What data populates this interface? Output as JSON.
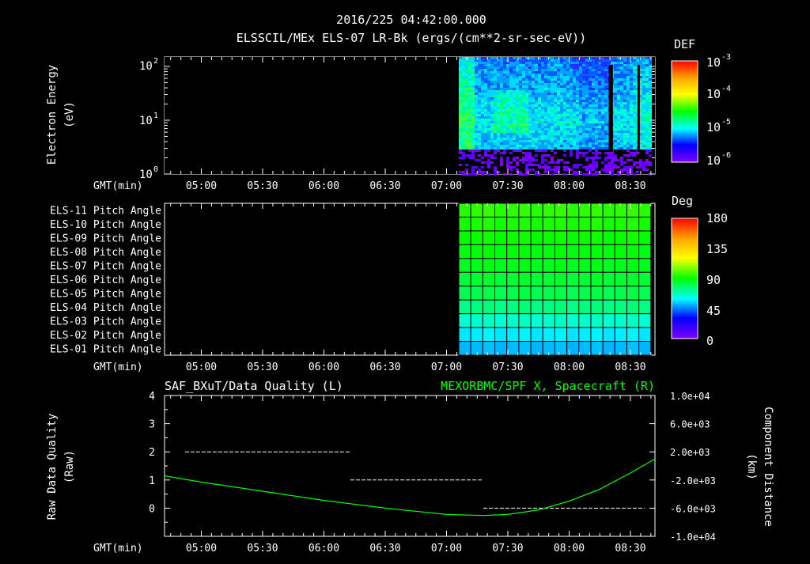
{
  "header": {
    "timestamp": "2016/225 04:42:00.000",
    "title": "ELSSCIL/MEx ELS-07 LR-Bk  (ergs/(cm**2-sr-sec-eV))"
  },
  "chart_data": [
    {
      "type": "heatmap",
      "name": "electron-energy-spectrogram",
      "ylabel": [
        "Electron Energy",
        "(eV)"
      ],
      "xlabel": "GMT(min)",
      "x_ticks": [
        "05:00",
        "05:30",
        "06:00",
        "06:30",
        "07:00",
        "07:30",
        "08:00",
        "08:30"
      ],
      "y_scale": "log",
      "ylim": [
        1,
        150
      ],
      "y_ticks": [
        {
          "base": "10",
          "exp": "0"
        },
        {
          "base": "10",
          "exp": "1"
        },
        {
          "base": "10",
          "exp": "2"
        }
      ],
      "data_start": "07:06",
      "data_end": "08:40",
      "colorbar": {
        "label": "DEF",
        "ticks": [
          {
            "base": "10",
            "exp": "-3"
          },
          {
            "base": "10",
            "exp": "-4"
          },
          {
            "base": "10",
            "exp": "-5"
          },
          {
            "base": "10",
            "exp": "-6"
          }
        ],
        "colors": [
          "#ff0000",
          "#ffa500",
          "#ffff00",
          "#00ff00",
          "#00ffff",
          "#0000ff",
          "#8000ff"
        ]
      }
    },
    {
      "type": "heatmap",
      "name": "pitch-angle-grid",
      "xlabel": "GMT(min)",
      "x_ticks": [
        "05:00",
        "05:30",
        "06:00",
        "06:30",
        "07:00",
        "07:30",
        "08:00",
        "08:30"
      ],
      "rows": [
        "ELS-11 Pitch Angle",
        "ELS-10 Pitch Angle",
        "ELS-09 Pitch Angle",
        "ELS-08 Pitch Angle",
        "ELS-07 Pitch Angle",
        "ELS-06 Pitch Angle",
        "ELS-05 Pitch Angle",
        "ELS-04 Pitch Angle",
        "ELS-03 Pitch Angle",
        "ELS-02 Pitch Angle",
        "ELS-01 Pitch Angle"
      ],
      "row_values": [
        95,
        93,
        91,
        89,
        87,
        84,
        81,
        75,
        66,
        58,
        52
      ],
      "data_start": "07:06",
      "data_end": "08:40",
      "colorbar": {
        "label": "Deg",
        "ticks": [
          "180",
          "135",
          "90",
          "45",
          "0"
        ],
        "colors": [
          "#ff0000",
          "#ffa500",
          "#ffff00",
          "#00ff00",
          "#00ffff",
          "#0000ff",
          "#8000ff"
        ]
      }
    },
    {
      "type": "line",
      "name": "data-quality-and-distance",
      "title_left": "SAF_BXuT/Data Quality (L)",
      "title_right": "MEXORBMC/SPF X, Spacecraft (R)",
      "xlabel": "GMT(min)",
      "x_ticks": [
        "05:00",
        "05:30",
        "06:00",
        "06:30",
        "07:00",
        "07:30",
        "08:00",
        "08:30"
      ],
      "ylabel_left": [
        "Raw Data Quality",
        "(Raw)"
      ],
      "ylabel_right": [
        "Component Distance",
        "(km)"
      ],
      "ylim_left": [
        -1,
        4
      ],
      "y_ticks_left": [
        "4",
        "3",
        "2",
        "1",
        "0"
      ],
      "ylim_right": [
        -10000,
        10000
      ],
      "y_ticks_right": [
        "1.0e+04",
        "6.0e+03",
        "2.0e+03",
        "-2.0e+03",
        "-6.0e+03",
        "-1.0e+04"
      ],
      "series": [
        {
          "axis": "left",
          "color": "#ffffff",
          "segments": [
            {
              "x_start": "04:52",
              "x_end": "06:13",
              "y": 2
            },
            {
              "x_start": "06:13",
              "x_end": "07:18",
              "y": 1
            },
            {
              "x_start": "07:18",
              "x_end": "08:37",
              "y": 0
            }
          ]
        },
        {
          "axis": "right",
          "color": "#00ff00",
          "x": [
            "04:42",
            "05:00",
            "05:30",
            "06:00",
            "06:30",
            "07:00",
            "07:18",
            "07:30",
            "07:45",
            "08:00",
            "08:15",
            "08:30",
            "08:42"
          ],
          "y": [
            -1400,
            -2300,
            -3600,
            -4900,
            -6000,
            -6900,
            -7050,
            -6900,
            -6250,
            -5000,
            -3300,
            -1000,
            1000
          ]
        }
      ]
    }
  ]
}
